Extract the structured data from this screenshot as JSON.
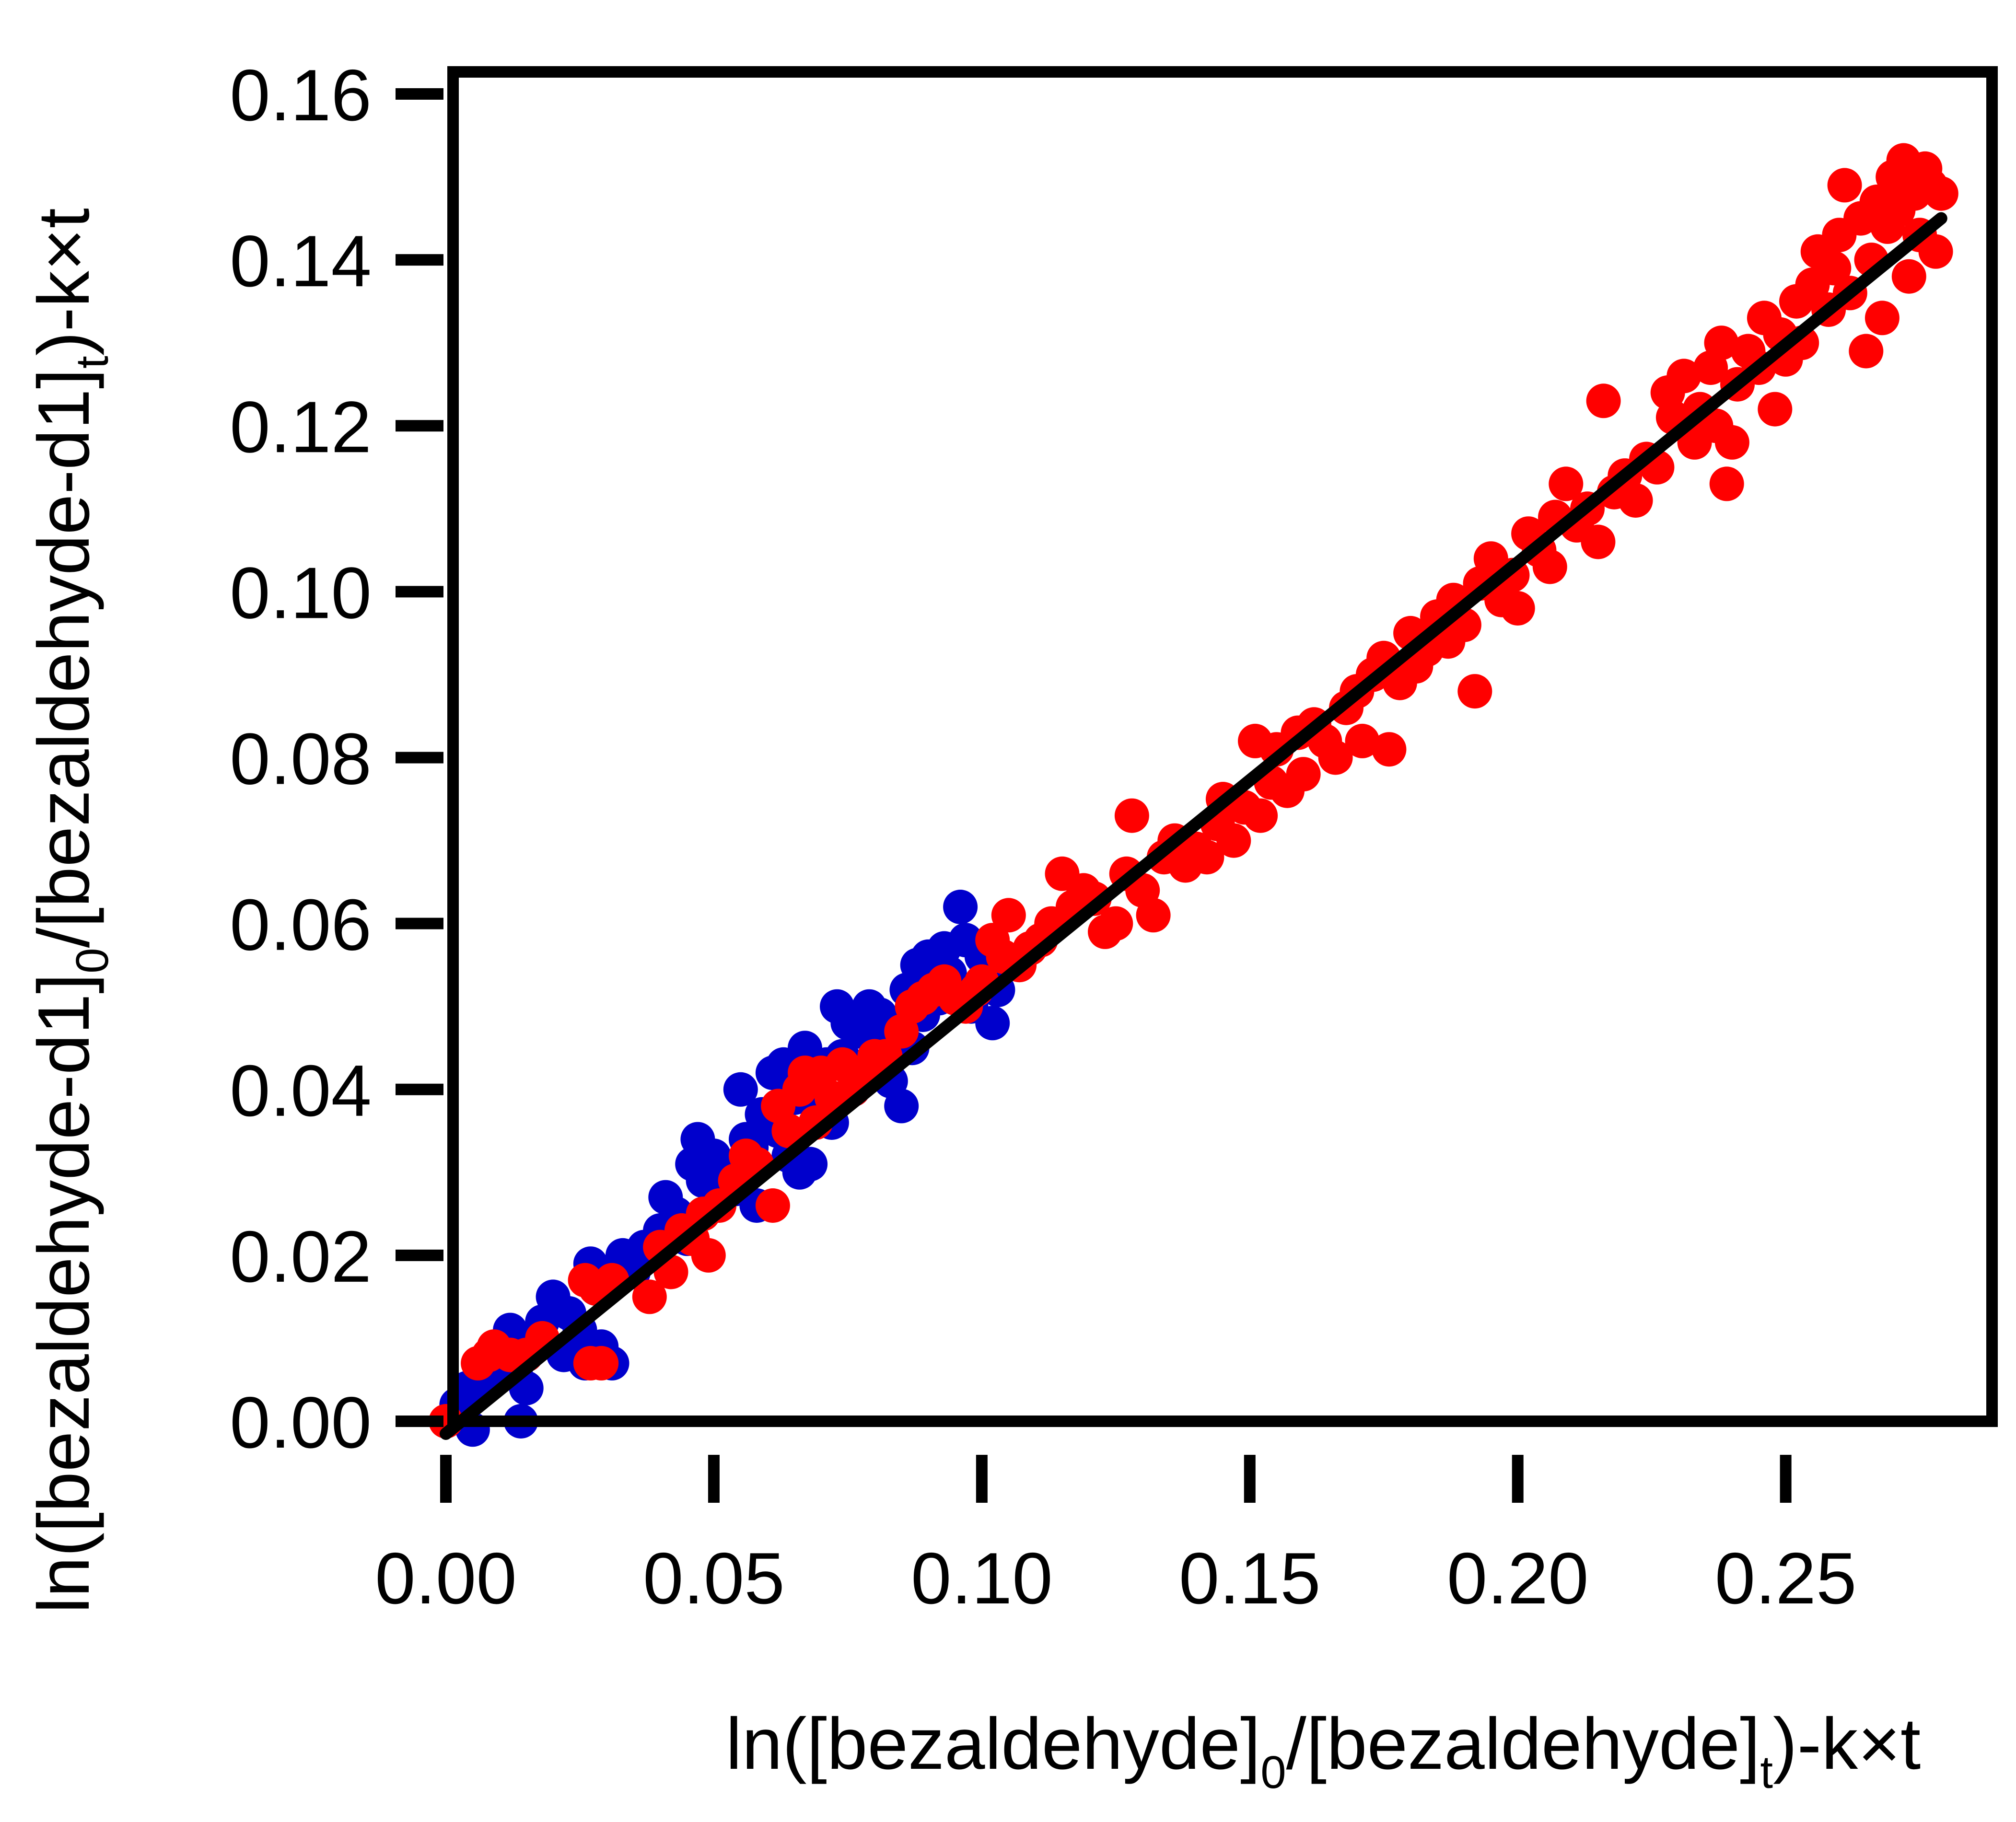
{
  "chart_data": {
    "type": "scatter",
    "xlabel": {
      "prefix": "ln([bezaldehyde]",
      "sub1": "0",
      "mid": "/[bezaldehyde]",
      "sub2": "t",
      "suffix": ")-k×t"
    },
    "ylabel": {
      "prefix": "ln([bezaldehyde-d1]",
      "sub1": "0",
      "mid": "/[bezaldehyde-d1]",
      "sub2": "t",
      "suffix": ")-k×t"
    },
    "xlim": [
      0.0,
      0.28
    ],
    "ylim": [
      0.0,
      0.16
    ],
    "x_ticks": [
      "0.00",
      "0.05",
      "0.10",
      "0.15",
      "0.20",
      "0.25"
    ],
    "y_ticks": [
      "0.00",
      "0.02",
      "0.04",
      "0.06",
      "0.08",
      "0.10",
      "0.12",
      "0.14",
      "0.16"
    ],
    "grid": false,
    "legend": "none",
    "series": [
      {
        "color": "#0000cc",
        "points": [
          [
            0.002,
            0.002
          ],
          [
            0.004,
            0.004
          ],
          [
            0.005,
            -0.001
          ],
          [
            0.008,
            0.005
          ],
          [
            0.01,
            0.009
          ],
          [
            0.012,
            0.011
          ],
          [
            0.013,
            0.006
          ],
          [
            0.014,
            0.0
          ],
          [
            0.015,
            0.004
          ],
          [
            0.017,
            0.01
          ],
          [
            0.018,
            0.012
          ],
          [
            0.02,
            0.015
          ],
          [
            0.022,
            0.008
          ],
          [
            0.023,
            0.013
          ],
          [
            0.025,
            0.011
          ],
          [
            0.026,
            0.007
          ],
          [
            0.027,
            0.019
          ],
          [
            0.028,
            0.016
          ],
          [
            0.029,
            0.009
          ],
          [
            0.03,
            0.017
          ],
          [
            0.031,
            0.007
          ],
          [
            0.033,
            0.02
          ],
          [
            0.035,
            0.018
          ],
          [
            0.037,
            0.021
          ],
          [
            0.04,
            0.023
          ],
          [
            0.041,
            0.027
          ],
          [
            0.043,
            0.025
          ],
          [
            0.045,
            0.022
          ],
          [
            0.046,
            0.031
          ],
          [
            0.047,
            0.034
          ],
          [
            0.048,
            0.029
          ],
          [
            0.05,
            0.032
          ],
          [
            0.052,
            0.03
          ],
          [
            0.054,
            0.028
          ],
          [
            0.055,
            0.04
          ],
          [
            0.056,
            0.034
          ],
          [
            0.057,
            0.033
          ],
          [
            0.058,
            0.026
          ],
          [
            0.059,
            0.037
          ],
          [
            0.06,
            0.036
          ],
          [
            0.061,
            0.042
          ],
          [
            0.062,
            0.035
          ],
          [
            0.063,
            0.043
          ],
          [
            0.064,
            0.032
          ],
          [
            0.065,
            0.039
          ],
          [
            0.066,
            0.03
          ],
          [
            0.067,
            0.045
          ],
          [
            0.068,
            0.031
          ],
          [
            0.069,
            0.041
          ],
          [
            0.07,
            0.038
          ],
          [
            0.071,
            0.043
          ],
          [
            0.072,
            0.036
          ],
          [
            0.073,
            0.05
          ],
          [
            0.074,
            0.044
          ],
          [
            0.075,
            0.048
          ],
          [
            0.076,
            0.04
          ],
          [
            0.077,
            0.047
          ],
          [
            0.078,
            0.042
          ],
          [
            0.079,
            0.05
          ],
          [
            0.08,
            0.046
          ],
          [
            0.081,
            0.049
          ],
          [
            0.082,
            0.044
          ],
          [
            0.083,
            0.041
          ],
          [
            0.084,
            0.047
          ],
          [
            0.085,
            0.038
          ],
          [
            0.086,
            0.052
          ],
          [
            0.087,
            0.045
          ],
          [
            0.088,
            0.055
          ],
          [
            0.089,
            0.049
          ],
          [
            0.09,
            0.056
          ],
          [
            0.091,
            0.053
          ],
          [
            0.092,
            0.051
          ],
          [
            0.093,
            0.057
          ],
          [
            0.094,
            0.054
          ],
          [
            0.096,
            0.062
          ],
          [
            0.097,
            0.058
          ],
          [
            0.098,
            0.05
          ],
          [
            0.1,
            0.056
          ],
          [
            0.102,
            0.048
          ],
          [
            0.103,
            0.052
          ]
        ]
      },
      {
        "color": "#ff0000",
        "points": [
          [
            0.0,
            0.0
          ],
          [
            0.006,
            0.007
          ],
          [
            0.008,
            0.008
          ],
          [
            0.009,
            0.009
          ],
          [
            0.012,
            0.008
          ],
          [
            0.015,
            0.008
          ],
          [
            0.018,
            0.01
          ],
          [
            0.026,
            0.017
          ],
          [
            0.027,
            0.007
          ],
          [
            0.028,
            0.016
          ],
          [
            0.029,
            0.007
          ],
          [
            0.031,
            0.017
          ],
          [
            0.038,
            0.015
          ],
          [
            0.04,
            0.021
          ],
          [
            0.042,
            0.018
          ],
          [
            0.044,
            0.023
          ],
          [
            0.046,
            0.022
          ],
          [
            0.048,
            0.025
          ],
          [
            0.049,
            0.02
          ],
          [
            0.051,
            0.026
          ],
          [
            0.054,
            0.029
          ],
          [
            0.056,
            0.032
          ],
          [
            0.058,
            0.031
          ],
          [
            0.061,
            0.026
          ],
          [
            0.062,
            0.038
          ],
          [
            0.064,
            0.035
          ],
          [
            0.066,
            0.04
          ],
          [
            0.067,
            0.042
          ],
          [
            0.069,
            0.036
          ],
          [
            0.07,
            0.042
          ],
          [
            0.072,
            0.039
          ],
          [
            0.074,
            0.043
          ],
          [
            0.076,
            0.04
          ],
          [
            0.078,
            0.042
          ],
          [
            0.08,
            0.044
          ],
          [
            0.082,
            0.044
          ],
          [
            0.085,
            0.047
          ],
          [
            0.087,
            0.05
          ],
          [
            0.089,
            0.051
          ],
          [
            0.091,
            0.052
          ],
          [
            0.093,
            0.053
          ],
          [
            0.095,
            0.051
          ],
          [
            0.097,
            0.05
          ],
          [
            0.099,
            0.052
          ],
          [
            0.1,
            0.053
          ],
          [
            0.102,
            0.058
          ],
          [
            0.104,
            0.056
          ],
          [
            0.105,
            0.061
          ],
          [
            0.107,
            0.055
          ],
          [
            0.109,
            0.057
          ],
          [
            0.111,
            0.058
          ],
          [
            0.113,
            0.06
          ],
          [
            0.115,
            0.066
          ],
          [
            0.117,
            0.062
          ],
          [
            0.119,
            0.064
          ],
          [
            0.121,
            0.063
          ],
          [
            0.123,
            0.059
          ],
          [
            0.125,
            0.06
          ],
          [
            0.127,
            0.066
          ],
          [
            0.128,
            0.073
          ],
          [
            0.13,
            0.064
          ],
          [
            0.132,
            0.061
          ],
          [
            0.134,
            0.068
          ],
          [
            0.136,
            0.07
          ],
          [
            0.138,
            0.067
          ],
          [
            0.14,
            0.069
          ],
          [
            0.142,
            0.068
          ],
          [
            0.144,
            0.072
          ],
          [
            0.145,
            0.075
          ],
          [
            0.147,
            0.07
          ],
          [
            0.149,
            0.074
          ],
          [
            0.151,
            0.082
          ],
          [
            0.152,
            0.073
          ],
          [
            0.154,
            0.077
          ],
          [
            0.155,
            0.081
          ],
          [
            0.157,
            0.076
          ],
          [
            0.159,
            0.083
          ],
          [
            0.16,
            0.078
          ],
          [
            0.162,
            0.084
          ],
          [
            0.164,
            0.082
          ],
          [
            0.166,
            0.08
          ],
          [
            0.168,
            0.086
          ],
          [
            0.17,
            0.088
          ],
          [
            0.171,
            0.082
          ],
          [
            0.173,
            0.09
          ],
          [
            0.175,
            0.092
          ],
          [
            0.176,
            0.081
          ],
          [
            0.178,
            0.089
          ],
          [
            0.18,
            0.095
          ],
          [
            0.181,
            0.091
          ],
          [
            0.183,
            0.093
          ],
          [
            0.185,
            0.097
          ],
          [
            0.187,
            0.094
          ],
          [
            0.188,
            0.099
          ],
          [
            0.19,
            0.096
          ],
          [
            0.192,
            0.088
          ],
          [
            0.193,
            0.101
          ],
          [
            0.195,
            0.104
          ],
          [
            0.197,
            0.099
          ],
          [
            0.199,
            0.102
          ],
          [
            0.2,
            0.098
          ],
          [
            0.202,
            0.107
          ],
          [
            0.204,
            0.105
          ],
          [
            0.206,
            0.103
          ],
          [
            0.207,
            0.109
          ],
          [
            0.209,
            0.113
          ],
          [
            0.211,
            0.108
          ],
          [
            0.213,
            0.11
          ],
          [
            0.215,
            0.106
          ],
          [
            0.216,
            0.123
          ],
          [
            0.218,
            0.112
          ],
          [
            0.22,
            0.114
          ],
          [
            0.222,
            0.111
          ],
          [
            0.224,
            0.116
          ],
          [
            0.226,
            0.115
          ],
          [
            0.228,
            0.124
          ],
          [
            0.229,
            0.121
          ],
          [
            0.231,
            0.126
          ],
          [
            0.233,
            0.118
          ],
          [
            0.234,
            0.122
          ],
          [
            0.236,
            0.127
          ],
          [
            0.237,
            0.12
          ],
          [
            0.238,
            0.13
          ],
          [
            0.239,
            0.113
          ],
          [
            0.24,
            0.118
          ],
          [
            0.241,
            0.125
          ],
          [
            0.243,
            0.129
          ],
          [
            0.245,
            0.127
          ],
          [
            0.246,
            0.133
          ],
          [
            0.248,
            0.122
          ],
          [
            0.249,
            0.131
          ],
          [
            0.25,
            0.128
          ],
          [
            0.252,
            0.135
          ],
          [
            0.253,
            0.13
          ],
          [
            0.255,
            0.137
          ],
          [
            0.256,
            0.141
          ],
          [
            0.258,
            0.134
          ],
          [
            0.259,
            0.139
          ],
          [
            0.26,
            0.143
          ],
          [
            0.261,
            0.149
          ],
          [
            0.262,
            0.136
          ],
          [
            0.264,
            0.145
          ],
          [
            0.265,
            0.129
          ],
          [
            0.266,
            0.14
          ],
          [
            0.267,
            0.147
          ],
          [
            0.268,
            0.133
          ],
          [
            0.269,
            0.144
          ],
          [
            0.27,
            0.15
          ],
          [
            0.271,
            0.146
          ],
          [
            0.272,
            0.152
          ],
          [
            0.273,
            0.138
          ],
          [
            0.274,
            0.148
          ],
          [
            0.275,
            0.143
          ],
          [
            0.276,
            0.151
          ],
          [
            0.277,
            0.149
          ],
          [
            0.278,
            0.141
          ],
          [
            0.279,
            0.148
          ]
        ]
      }
    ],
    "fit_line": {
      "color": "#000000",
      "x": [
        0.0,
        0.279
      ],
      "y": [
        -0.0015,
        0.145
      ]
    }
  }
}
